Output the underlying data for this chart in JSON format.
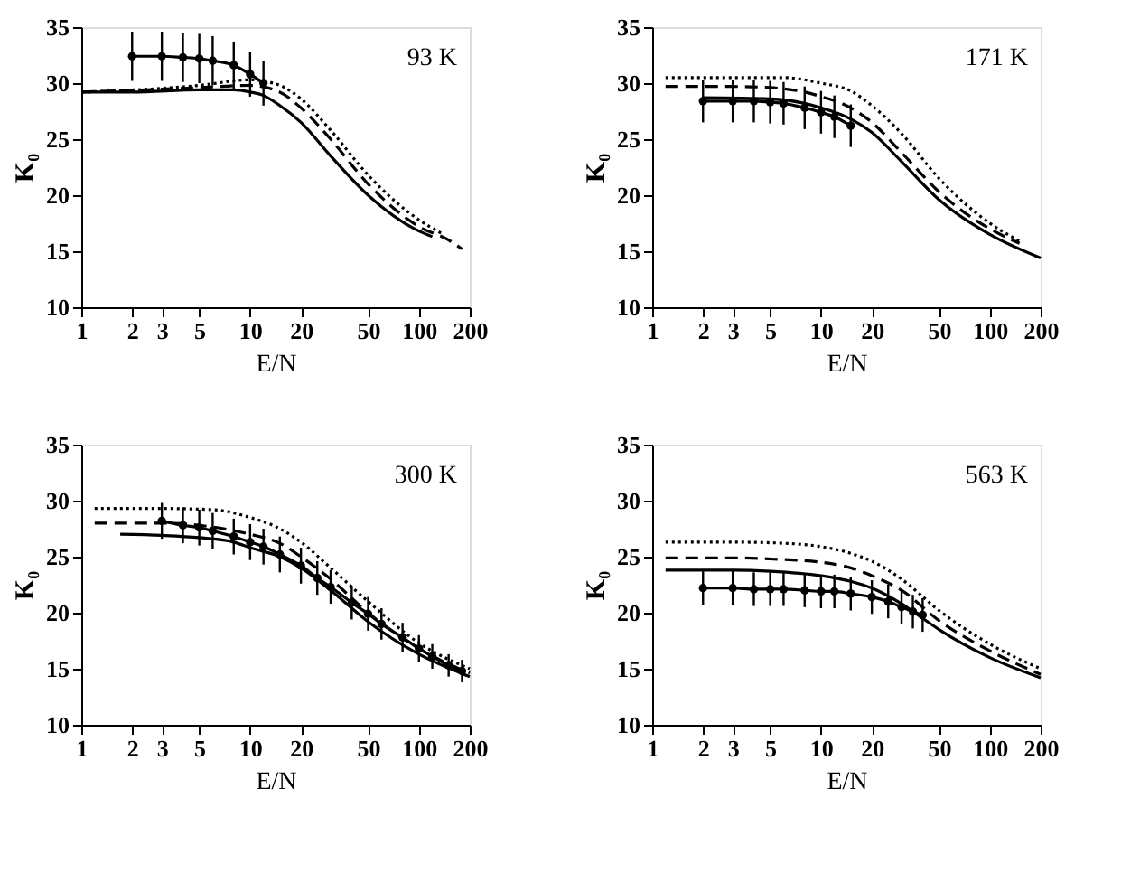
{
  "chart_data": [
    {
      "type": "line",
      "annotations": [
        "93 K"
      ],
      "xlabel": "E/N",
      "ylabel": "K₀",
      "log": "x",
      "xlim": [
        1,
        200
      ],
      "xticks": [
        1,
        2,
        3,
        5,
        10,
        20,
        50,
        100,
        200
      ],
      "ylim": [
        10,
        35
      ],
      "yticks": [
        10,
        15,
        20,
        25,
        30,
        35
      ],
      "grid": false,
      "legend": false,
      "series": [
        {
          "color": "#000000",
          "line_style": "solid",
          "x": [
            1,
            2,
            5,
            8,
            10,
            12,
            15,
            20,
            30,
            50,
            100,
            120
          ],
          "values": [
            29.2,
            29.2,
            29.4,
            29.4,
            29.2,
            28.9,
            28,
            26.5,
            23.5,
            20,
            16.8,
            16.3
          ]
        },
        {
          "color": "#000000",
          "line_style": "dashed",
          "x": [
            1,
            5,
            10,
            15,
            20,
            30,
            50,
            100,
            150,
            180
          ],
          "values": [
            29.2,
            29.6,
            29.8,
            29.2,
            27.8,
            25,
            21,
            17.2,
            16,
            15.2
          ]
        },
        {
          "color": "#000000",
          "line_style": "dotted",
          "x": [
            1,
            5,
            10,
            15,
            20,
            30,
            50,
            100,
            140
          ],
          "values": [
            29.2,
            29.8,
            30.3,
            29.8,
            28.6,
            25.8,
            21.8,
            17.8,
            16.5
          ]
        },
        {
          "color": "#000000",
          "line_style": "solid",
          "marker": "circle",
          "x": [
            2,
            3,
            4,
            5,
            6,
            8,
            10,
            12
          ],
          "values": [
            32.4,
            32.4,
            32.3,
            32.2,
            32,
            31.6,
            30.8,
            30
          ],
          "errors": [
            2.2,
            2.2,
            2.2,
            2.2,
            2.2,
            2.1,
            2,
            2
          ]
        }
      ]
    },
    {
      "type": "line",
      "annotations": [
        "171 K"
      ],
      "xlabel": "E/N",
      "ylabel": "K₀",
      "log": "x",
      "xlim": [
        1,
        200
      ],
      "xticks": [
        1,
        2,
        3,
        5,
        10,
        20,
        50,
        100,
        200
      ],
      "ylim": [
        10,
        35
      ],
      "yticks": [
        10,
        15,
        20,
        25,
        30,
        35
      ],
      "grid": false,
      "legend": false,
      "series": [
        {
          "color": "#000000",
          "line_style": "solid",
          "x": [
            2,
            5,
            8,
            10,
            15,
            20,
            30,
            50,
            100,
            200
          ],
          "values": [
            28.7,
            28.6,
            28.2,
            27.8,
            26.8,
            25.6,
            23,
            19.6,
            16.5,
            14.4
          ]
        },
        {
          "color": "#000000",
          "line_style": "dashed",
          "x": [
            1.2,
            3,
            5,
            8,
            10,
            15,
            20,
            30,
            50,
            100,
            150
          ],
          "values": [
            29.7,
            29.7,
            29.6,
            29.2,
            28.8,
            27.8,
            26.5,
            23.8,
            20.3,
            17,
            15.7
          ]
        },
        {
          "color": "#000000",
          "line_style": "dotted",
          "x": [
            1.2,
            3,
            6,
            10,
            15,
            20,
            30,
            50,
            100,
            150
          ],
          "values": [
            30.5,
            30.5,
            30.5,
            30,
            29.3,
            28,
            25.5,
            21.5,
            17.5,
            15.9
          ]
        },
        {
          "color": "#000000",
          "line_style": "solid",
          "marker": "circle",
          "x": [
            2,
            3,
            4,
            5,
            6,
            8,
            10,
            12,
            15
          ],
          "values": [
            28.4,
            28.4,
            28.4,
            28.3,
            28.2,
            27.8,
            27.4,
            27,
            26.2
          ],
          "errors": [
            1.9,
            1.9,
            1.9,
            1.9,
            1.9,
            1.9,
            1.9,
            1.9,
            1.9
          ]
        }
      ]
    },
    {
      "type": "line",
      "annotations": [
        "300 K"
      ],
      "xlabel": "E/N",
      "ylabel": "K₀",
      "log": "x",
      "xlim": [
        1,
        200
      ],
      "xticks": [
        1,
        2,
        3,
        5,
        10,
        20,
        50,
        100,
        200
      ],
      "ylim": [
        10,
        35
      ],
      "yticks": [
        10,
        15,
        20,
        25,
        30,
        35
      ],
      "grid": false,
      "legend": false,
      "series": [
        {
          "color": "#000000",
          "line_style": "solid",
          "x": [
            1.7,
            3,
            5,
            8,
            10,
            15,
            20,
            30,
            50,
            100,
            200
          ],
          "values": [
            27,
            26.9,
            26.7,
            26.3,
            25.8,
            25,
            24,
            22,
            19.2,
            16.3,
            14.3
          ]
        },
        {
          "color": "#000000",
          "line_style": "dashed",
          "x": [
            1.2,
            3,
            5,
            10,
            15,
            20,
            30,
            50,
            100,
            200
          ],
          "values": [
            28,
            28,
            27.8,
            27,
            26.2,
            25,
            23,
            20,
            16.8,
            14.6
          ]
        },
        {
          "color": "#000000",
          "line_style": "dotted",
          "x": [
            1.2,
            3,
            6,
            10,
            15,
            20,
            30,
            50,
            100,
            200
          ],
          "values": [
            29.3,
            29.3,
            29.2,
            28.5,
            27.5,
            26.3,
            24,
            21,
            17.3,
            15
          ]
        },
        {
          "color": "#000000",
          "line_style": "solid",
          "marker": "circle",
          "x": [
            3,
            4,
            5,
            6,
            8,
            10,
            12,
            15,
            20,
            25,
            30,
            40,
            50,
            60,
            80,
            100,
            120,
            150,
            180
          ],
          "values": [
            28.2,
            27.8,
            27.6,
            27.3,
            26.8,
            26.3,
            25.9,
            25.2,
            24.2,
            23.1,
            22.3,
            20.9,
            19.9,
            19,
            17.8,
            16.8,
            16.1,
            15.3,
            14.8
          ],
          "errors": [
            1.6,
            1.6,
            1.6,
            1.6,
            1.6,
            1.6,
            1.6,
            1.6,
            1.6,
            1.5,
            1.5,
            1.5,
            1.5,
            1.4,
            1.3,
            1.2,
            1.1,
            1,
            1
          ]
        }
      ]
    },
    {
      "type": "line",
      "annotations": [
        "563 K"
      ],
      "xlabel": "E/N",
      "ylabel": "K₀",
      "log": "x",
      "xlim": [
        1,
        200
      ],
      "xticks": [
        1,
        2,
        3,
        5,
        10,
        20,
        50,
        100,
        200
      ],
      "ylim": [
        10,
        35
      ],
      "yticks": [
        10,
        15,
        20,
        25,
        30,
        35
      ],
      "grid": false,
      "legend": false,
      "series": [
        {
          "color": "#000000",
          "line_style": "solid",
          "x": [
            1.2,
            3,
            5,
            10,
            15,
            20,
            30,
            40,
            50,
            100,
            200
          ],
          "values": [
            23.8,
            23.8,
            23.7,
            23.3,
            22.8,
            22.2,
            20.8,
            19.5,
            18.5,
            16,
            14.2
          ]
        },
        {
          "color": "#000000",
          "line_style": "dashed",
          "x": [
            1.2,
            3,
            5,
            10,
            15,
            20,
            30,
            50,
            100,
            200
          ],
          "values": [
            24.9,
            24.9,
            24.8,
            24.5,
            24,
            23.3,
            22,
            19.3,
            16.6,
            14.5
          ]
        },
        {
          "color": "#000000",
          "line_style": "dotted",
          "x": [
            1.2,
            3,
            6,
            10,
            15,
            20,
            30,
            50,
            100,
            200
          ],
          "values": [
            26.3,
            26.3,
            26.2,
            25.9,
            25.3,
            24.6,
            23,
            20.2,
            17.2,
            15
          ]
        },
        {
          "color": "#000000",
          "line_style": "solid",
          "marker": "circle",
          "x": [
            2,
            3,
            4,
            5,
            6,
            8,
            10,
            12,
            15,
            20,
            25,
            30,
            35,
            40
          ],
          "values": [
            22.2,
            22.2,
            22.1,
            22.1,
            22.1,
            22,
            21.9,
            21.9,
            21.7,
            21.4,
            21,
            20.5,
            20.1,
            19.8
          ],
          "errors": [
            1.5,
            1.5,
            1.5,
            1.5,
            1.5,
            1.5,
            1.5,
            1.5,
            1.5,
            1.5,
            1.5,
            1.5,
            1.5,
            1.5
          ]
        }
      ]
    }
  ]
}
